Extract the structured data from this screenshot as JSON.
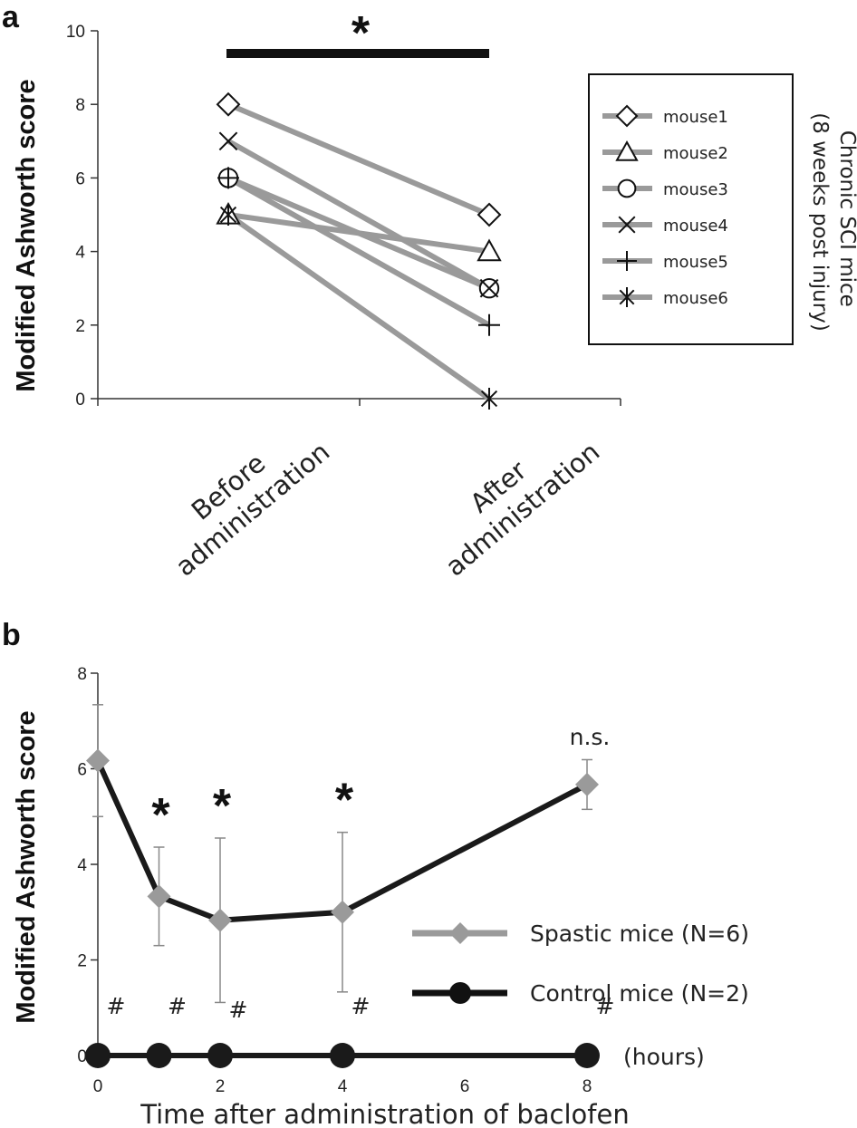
{
  "chart_data": [
    {
      "panel": "a",
      "type": "line",
      "ylabel": "Modified Ashworth score",
      "ylim": [
        0,
        10
      ],
      "yticks": [
        "0",
        "2",
        "4",
        "6",
        "8",
        "10"
      ],
      "categories": [
        "Before administration",
        "After administration"
      ],
      "category_lines": [
        [
          "Before",
          "administration"
        ],
        [
          "After",
          "administration"
        ]
      ],
      "significance": "*",
      "legend_title": [
        "Chronic SCI mice",
        "(8 weeks post injury)"
      ],
      "line_color": "#9a9a9a",
      "series": [
        {
          "name": "mouse1",
          "marker": "diamond",
          "values": [
            8,
            5
          ]
        },
        {
          "name": "mouse2",
          "marker": "triangle",
          "values": [
            5,
            4
          ]
        },
        {
          "name": "mouse3",
          "marker": "circle",
          "values": [
            6,
            3
          ]
        },
        {
          "name": "mouse4",
          "marker": "x",
          "values": [
            7,
            3
          ]
        },
        {
          "name": "mouse5",
          "marker": "plus",
          "values": [
            6,
            2
          ]
        },
        {
          "name": "mouse6",
          "marker": "asterisk",
          "values": [
            5,
            0
          ]
        }
      ]
    },
    {
      "panel": "b",
      "type": "line",
      "ylabel": "Modified Ashworth score",
      "xlabel": "Time after administration of baclofen",
      "x_unit": "(hours)",
      "ylim": [
        0,
        8
      ],
      "yticks": [
        "0",
        "2",
        "4",
        "6",
        "8"
      ],
      "xlim": [
        0,
        8
      ],
      "xticks": [
        "0",
        "2",
        "4",
        "6",
        "8"
      ],
      "series": [
        {
          "name": "Spastic mice (N=6)",
          "marker": "diamond",
          "color": "#9a9a9a",
          "line_color": "#1a1a1a",
          "x": [
            0,
            1,
            2,
            4,
            8
          ],
          "values": [
            6.17,
            3.33,
            2.83,
            3.0,
            5.67
          ],
          "error": [
            1.17,
            1.03,
            1.72,
            1.67,
            0.52
          ]
        },
        {
          "name": "Control mice (N=2)",
          "marker": "circle",
          "color": "#1a1a1a",
          "x": [
            0,
            1,
            2,
            4,
            8
          ],
          "values": [
            0,
            0,
            0,
            0,
            0
          ]
        }
      ],
      "annotations": {
        "star": "*",
        "star_at": [
          1,
          2,
          4
        ],
        "ns": "n.s.",
        "ns_at": 8,
        "hash": "#",
        "hash_at": [
          0,
          1,
          2,
          4,
          8
        ]
      }
    }
  ]
}
